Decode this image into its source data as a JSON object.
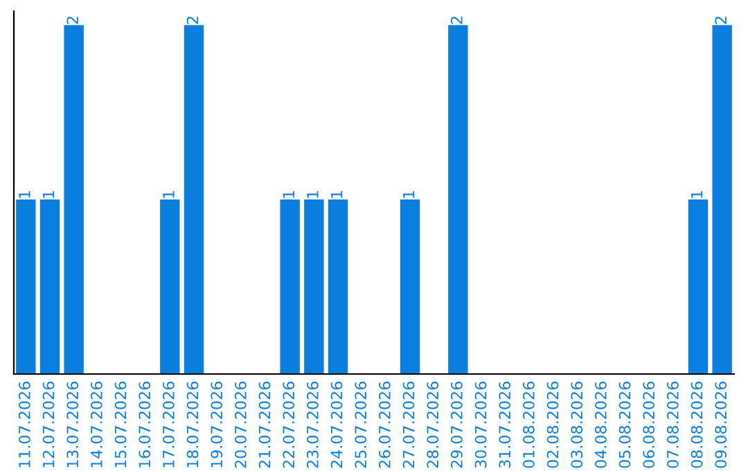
{
  "chart_data": {
    "type": "bar",
    "categories": [
      "11.07.2026",
      "12.07.2026",
      "13.07.2026",
      "14.07.2026",
      "15.07.2026",
      "16.07.2026",
      "17.07.2026",
      "18.07.2026",
      "19.07.2026",
      "20.07.2026",
      "21.07.2026",
      "22.07.2026",
      "23.07.2026",
      "24.07.2026",
      "25.07.2026",
      "26.07.2026",
      "27.07.2026",
      "28.07.2026",
      "29.07.2026",
      "30.07.2026",
      "31.07.2026",
      "01.08.2026",
      "02.08.2026",
      "03.08.2026",
      "04.08.2026",
      "05.08.2026",
      "06.08.2026",
      "07.08.2026",
      "08.08.2026",
      "09.08.2026"
    ],
    "values": [
      1,
      1,
      2,
      0,
      0,
      0,
      1,
      2,
      0,
      0,
      0,
      1,
      1,
      1,
      0,
      0,
      1,
      0,
      2,
      0,
      0,
      0,
      0,
      0,
      0,
      0,
      0,
      0,
      1,
      2
    ],
    "value_labels": [
      "1",
      "1",
      "2",
      null,
      null,
      null,
      "1",
      "2",
      null,
      null,
      null,
      "1",
      "1",
      "1",
      null,
      null,
      "1",
      null,
      "2",
      null,
      null,
      null,
      null,
      null,
      null,
      null,
      null,
      null,
      "1",
      "2"
    ],
    "color": "#0a7fe0",
    "ylim": [
      0,
      2.08
    ],
    "tick_labels": "x",
    "grid": false
  }
}
